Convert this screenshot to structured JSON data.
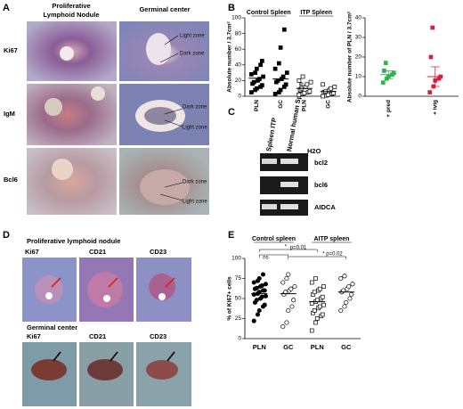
{
  "panels": {
    "a": "A",
    "b": "B",
    "c": "C",
    "d": "D",
    "e": "E"
  },
  "panel_a": {
    "col_headers": [
      "Proliferative",
      "Lymphoid Nodule",
      "Germinal center"
    ],
    "row_labels": [
      "Ki67",
      "IgM",
      "Bcl6"
    ],
    "annotations": [
      "Light zone",
      "Dark zone",
      "Dark zone",
      "Light zone",
      "Dark zone",
      "Light zone"
    ]
  },
  "panel_c": {
    "lanes": [
      "Spleen ITP",
      "Normal human Spleen"
    ],
    "labels": [
      "H2O",
      "bcl2",
      "bcl6",
      "AIDCA"
    ]
  },
  "panel_d": {
    "section_titles": [
      "Proliferative lymphoid nodule",
      "Germinal center"
    ],
    "stains": [
      "Ki67",
      "CD21",
      "CD23"
    ]
  },
  "chart_data": [
    {
      "type": "dot",
      "y_label": "Absolute number / 3.7cm²",
      "group_labels": [
        "Control Spleen",
        "ITP Spleen"
      ],
      "categories": [
        "PLN",
        "GC",
        "PLN",
        "GC"
      ],
      "markers": [
        "square",
        "square",
        "square-open",
        "square-open"
      ],
      "color": "#000000",
      "values": [
        [
          5,
          8,
          10,
          12,
          14,
          16,
          18,
          20,
          22,
          25,
          28,
          30,
          35,
          40,
          45
        ],
        [
          3,
          5,
          8,
          12,
          15,
          18,
          20,
          22,
          25,
          30,
          35,
          42,
          62,
          85
        ],
        [
          2,
          3,
          4,
          5,
          6,
          8,
          10,
          12,
          15,
          18,
          20,
          25
        ],
        [
          0,
          1,
          2,
          3,
          4,
          5,
          6,
          8,
          10,
          12,
          15
        ]
      ],
      "means": [
        23,
        22,
        10,
        6
      ],
      "ylim": [
        0,
        100
      ],
      "yticks": [
        0,
        20,
        40,
        60,
        80,
        100
      ]
    },
    {
      "type": "dot",
      "y_label": "Absolute number of PLN / 3.7cm²",
      "categories": [
        "+ pred",
        "+ ivig"
      ],
      "markers": [
        "square",
        "square"
      ],
      "colors": [
        "#2db34a",
        "#d4213d"
      ],
      "values": [
        [
          7,
          9,
          10,
          11,
          12,
          13,
          17
        ],
        [
          2,
          5,
          8,
          9,
          10,
          20,
          35
        ]
      ],
      "means": [
        11,
        10
      ],
      "errors": [
        2,
        5
      ],
      "ylim": [
        0,
        40
      ],
      "yticks": [
        0,
        10,
        20,
        30,
        40
      ]
    },
    {
      "type": "dot",
      "y_label": "% of Ki67+ cells",
      "group_labels": [
        "Control spleen",
        "AITP spleen"
      ],
      "categories": [
        "PLN",
        "GC",
        "PLN",
        "GC"
      ],
      "markers": [
        "circle",
        "circle-open",
        "square-open",
        "circle-open"
      ],
      "color": "#000000",
      "values": [
        [
          22,
          30,
          35,
          40,
          42,
          45,
          48,
          50,
          52,
          53,
          55,
          56,
          58,
          60,
          60,
          62,
          63,
          65,
          66,
          68,
          70,
          72,
          75,
          80
        ],
        [
          15,
          20,
          35,
          40,
          48,
          55,
          58,
          60,
          62,
          65,
          70,
          75,
          80
        ],
        [
          10,
          20,
          25,
          28,
          30,
          32,
          35,
          38,
          40,
          42,
          44,
          46,
          48,
          50,
          52,
          55,
          58,
          60,
          62,
          65,
          70,
          75
        ],
        [
          35,
          40,
          45,
          50,
          55,
          58,
          60,
          62,
          65,
          68,
          75,
          78
        ]
      ],
      "means": [
        56,
        56,
        46,
        58
      ],
      "ylim": [
        0,
        100
      ],
      "yticks": [
        0,
        25,
        50,
        75,
        100
      ],
      "annotations": [
        "*",
        "p=0.01",
        "ns",
        "* p=0.02"
      ]
    }
  ]
}
